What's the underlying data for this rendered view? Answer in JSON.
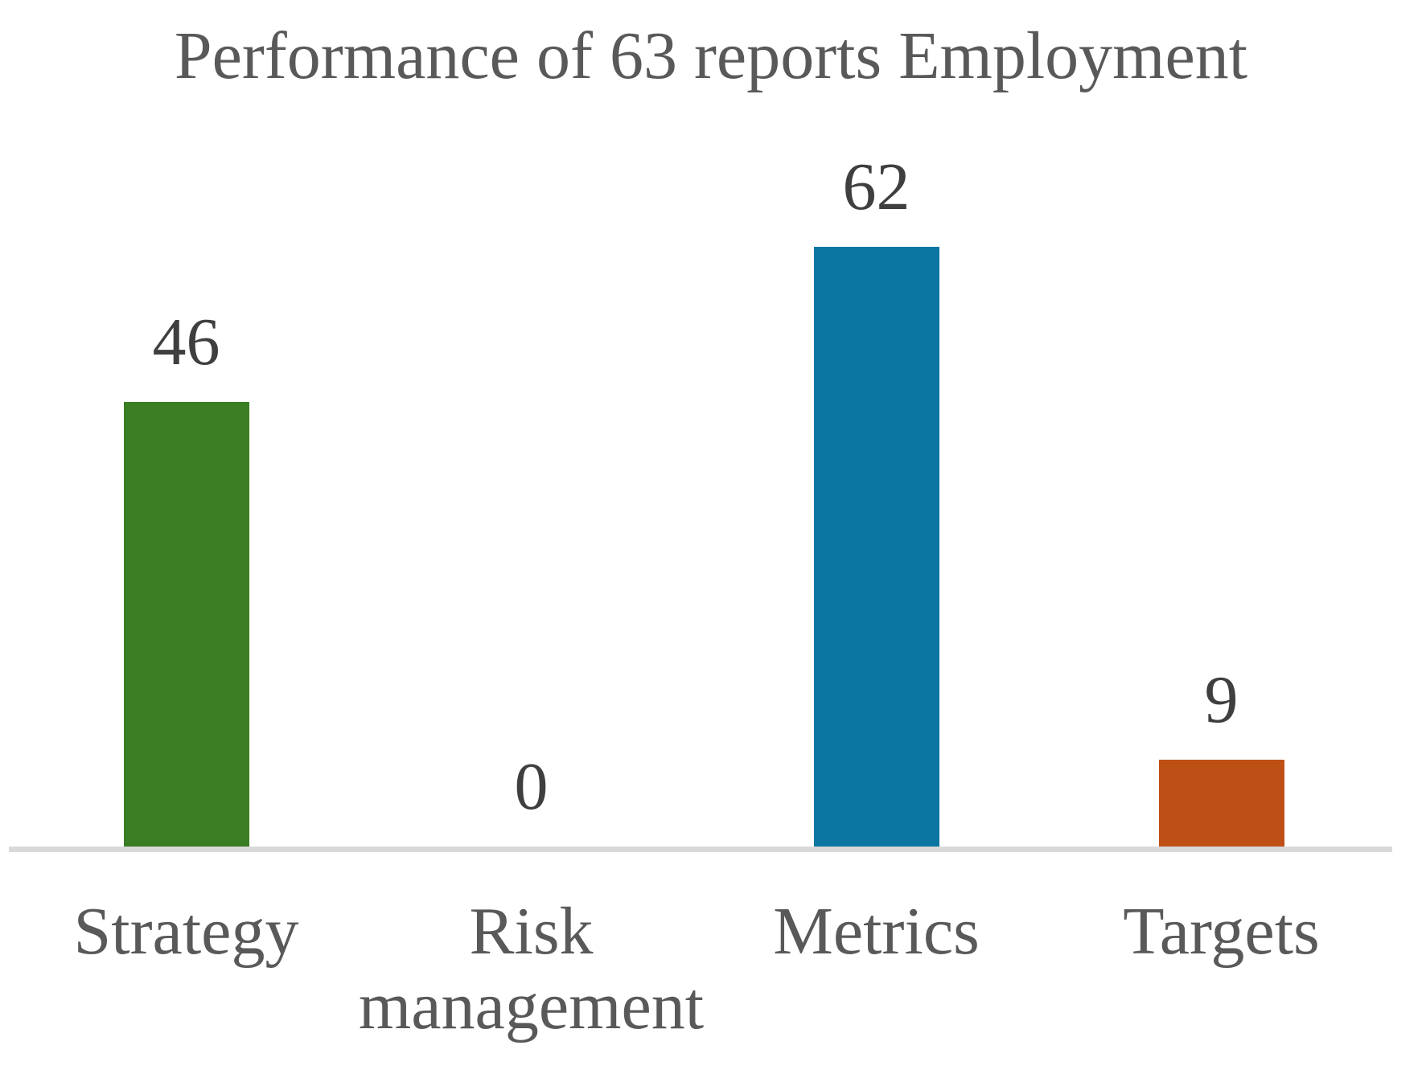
{
  "title": "Performance of 63 reports Employment",
  "colors": {
    "title_text": "#595959",
    "category_text": "#595959",
    "value_text": "#3f3f3f",
    "axis_line": "#d9d9d9",
    "background": "#ffffff",
    "bar_green": "#3a7d22",
    "bar_blue": "#0c76a3",
    "bar_orange": "#bf5015"
  },
  "chart_data": {
    "type": "bar",
    "title": "Performance of 63 reports Employment",
    "categories": [
      "Strategy",
      "Risk management",
      "Metrics",
      "Targets"
    ],
    "values": [
      46,
      0,
      62,
      9
    ],
    "data_labels": [
      "46",
      "0",
      "62",
      "9"
    ],
    "bar_colors": [
      "#3a7d22",
      null,
      "#0c76a3",
      "#bf5015"
    ],
    "xlabel": "",
    "ylabel": "",
    "ylim": [
      0,
      62
    ],
    "grid": false,
    "legend": false,
    "gridlines": "off",
    "legend_position": "none",
    "value_labels_position": "above-bar"
  }
}
